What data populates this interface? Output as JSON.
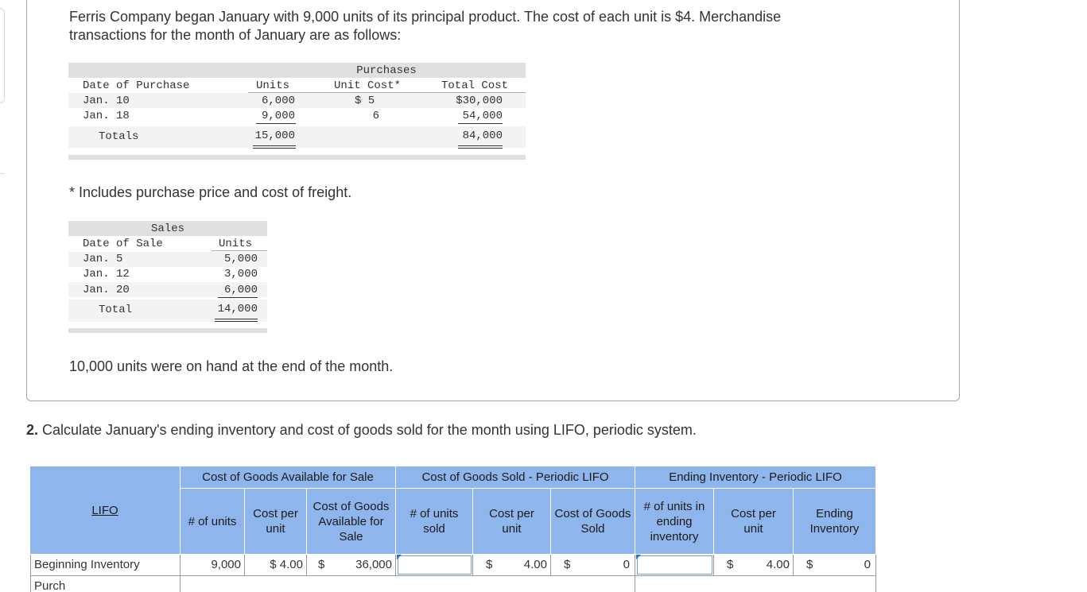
{
  "intro": {
    "line1": "Ferris Company began January with 9,000 units of its principal product. The cost of each unit is $4. Merchandise",
    "line2": "transactions for the month of January are as follows:"
  },
  "purchases_table": {
    "group_header": "Purchases",
    "headers": {
      "date": "Date of Purchase",
      "units": "Units",
      "unit_cost": "Unit Cost*",
      "total_cost": "Total Cost"
    },
    "rows": [
      {
        "date": "Jan. 10",
        "units": "6,000",
        "unit_cost": "$ 5",
        "total_cost": "$30,000"
      },
      {
        "date": "Jan. 18",
        "units": "9,000",
        "unit_cost": "6",
        "total_cost": "54,000"
      }
    ],
    "totals": {
      "label": "Totals",
      "units": "15,000",
      "total_cost": "84,000"
    }
  },
  "footnote": "* Includes purchase price and cost of freight.",
  "sales_table": {
    "group_header": "Sales",
    "headers": {
      "date": "Date of Sale",
      "units": "Units"
    },
    "rows": [
      {
        "date": "Jan. 5",
        "units": "5,000"
      },
      {
        "date": "Jan. 12",
        "units": "3,000"
      },
      {
        "date": "Jan. 20",
        "units": "6,000"
      }
    ],
    "total": {
      "label": "Total",
      "units": "14,000"
    }
  },
  "end_note": "10,000 units were on hand at the end of the month.",
  "question": {
    "number": "2.",
    "text": " Calculate January's ending inventory and cost of goods sold for the month using LIFO, periodic system."
  },
  "answer_table": {
    "groups": {
      "available": "Cost of Goods Available for Sale",
      "cogs": "Cost of Goods Sold - Periodic LIFO",
      "ending": "Ending Inventory - Periodic LIFO"
    },
    "lifo_label": "LIFO",
    "columns": {
      "units": "# of units",
      "cost_per_unit": "Cost per unit",
      "available_cost": "Cost of Goods Available for Sale",
      "units_sold": "# of units sold",
      "cogs_cost_per_unit": "Cost per unit",
      "cogs": "Cost of Goods Sold",
      "units_ending": "# of units in ending inventory",
      "ending_cost_per_unit": "Cost per unit",
      "ending_inventory": "Ending Inventory"
    },
    "row": {
      "label": "Beginning Inventory",
      "units": "9,000",
      "cost_per_unit": "$ 4.00",
      "available_dollar": "$",
      "available_cost": "36,000",
      "units_sold": "",
      "cogs_dollar": "$",
      "cogs_cost_per_unit": "4.00",
      "cogs_dollar2": "$",
      "cogs": "0",
      "units_ending": "",
      "ending_dollar": "$",
      "ending_cost_per_unit": "4.00",
      "ending_dollar2": "$",
      "ending_inventory": "0"
    },
    "next_row_label": "Purch"
  },
  "colors": {
    "header_blue": "#8fb6ec",
    "card_border": "#97a4b4",
    "band_gray": "#e0e0e0"
  }
}
